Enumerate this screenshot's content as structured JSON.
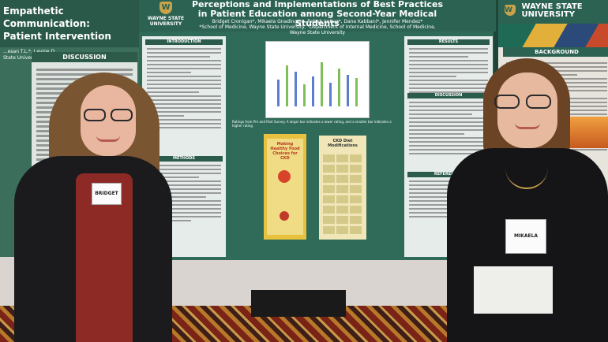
{
  "left_poster": {
    "title": "Empathetic Communication:\nPatient Intervention",
    "authors": "...esan T.L.*, Lavine D.\nState University School of Medicine",
    "section": "DISCUSSION"
  },
  "main_poster": {
    "logo_text": "WAYNE STATE\nUNIVERSITY",
    "logo_mark": "W",
    "title": "Perceptions and Implementations of Best Practices in Patient Education among Second-Year Medical Students",
    "authors": "Bridget Cronigan*, Mikaela Gnadinger*, Rebab Imtiaz*, Dana Kabbani*, Jennifer Mendez*",
    "affiliation": "*School of Medicine, Wayne State University, ¹Department of Internal Medicine, School of Medicine, Wayne State University",
    "sections": {
      "introduction": "INTRODUCTION",
      "methods": "METHODS",
      "results": "RESULTS",
      "discussion": "DISCUSSION",
      "references": "REFERENCES"
    },
    "chart_caption": "Ratings from Pre and Post Survey. A larger bar indicates a lower rating, and a smaller bar indicates a higher rating.",
    "handout1_title": "Making Healthy Food Choices for CKD",
    "handout2_title": "CKD Diet Modifications"
  },
  "right_poster": {
    "logo_text": "WAYNE STATE\nUNIVERSITY",
    "logo_mark": "W",
    "section": "BACKGROUND"
  },
  "badges": {
    "left": "BRIDGET",
    "right": "MIKAELA"
  }
}
